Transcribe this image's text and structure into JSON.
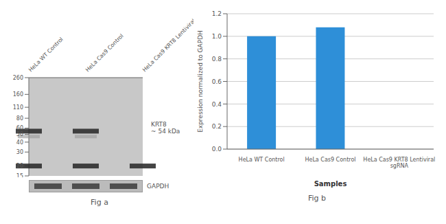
{
  "chart_data": [
    {
      "type": "blot",
      "title": "Fig a",
      "categories": [
        "HeLa WT Control",
        "HeLa Cas9 Control",
        "HeLa Cas9 KRT8 Lentiviral sgRNA"
      ],
      "series": [
        {
          "values": [
            55,
            55,
            null
          ],
          "color": "#2a2a2a"
        },
        {
          "values": [
            47,
            47,
            null
          ],
          "color": "#999999"
        },
        {
          "values": [
            20,
            20,
            20
          ],
          "color": "#2a2a2a"
        }
      ],
      "ylim": [
        15,
        260
      ],
      "yticks": [
        260,
        160,
        110,
        80,
        60,
        50,
        40,
        30,
        20,
        15
      ],
      "log": "y",
      "annotations": [
        "KRT8\n~ 54 kDa",
        "GAPDH"
      ]
    },
    {
      "type": "bar",
      "title": "Fig b",
      "categories": [
        "HeLa WT Control",
        "HeLa Cas9 Control",
        "HeLa Cas9 KRT8 Lentiviral\nsgRNA"
      ],
      "values": [
        1.0,
        1.08,
        0.0
      ],
      "color": "#2E8FD8",
      "ylabel": "Expression normalized to GAPDH",
      "xlabel": "Samples",
      "ylim": [
        0,
        1.2
      ],
      "yticks": [
        {
          "value": 0,
          "label": "0.0"
        },
        0.2,
        0.4,
        0.6,
        0.8,
        {
          "value": 1.0,
          "label": "1.0"
        },
        1.2
      ],
      "grid": true
    }
  ]
}
